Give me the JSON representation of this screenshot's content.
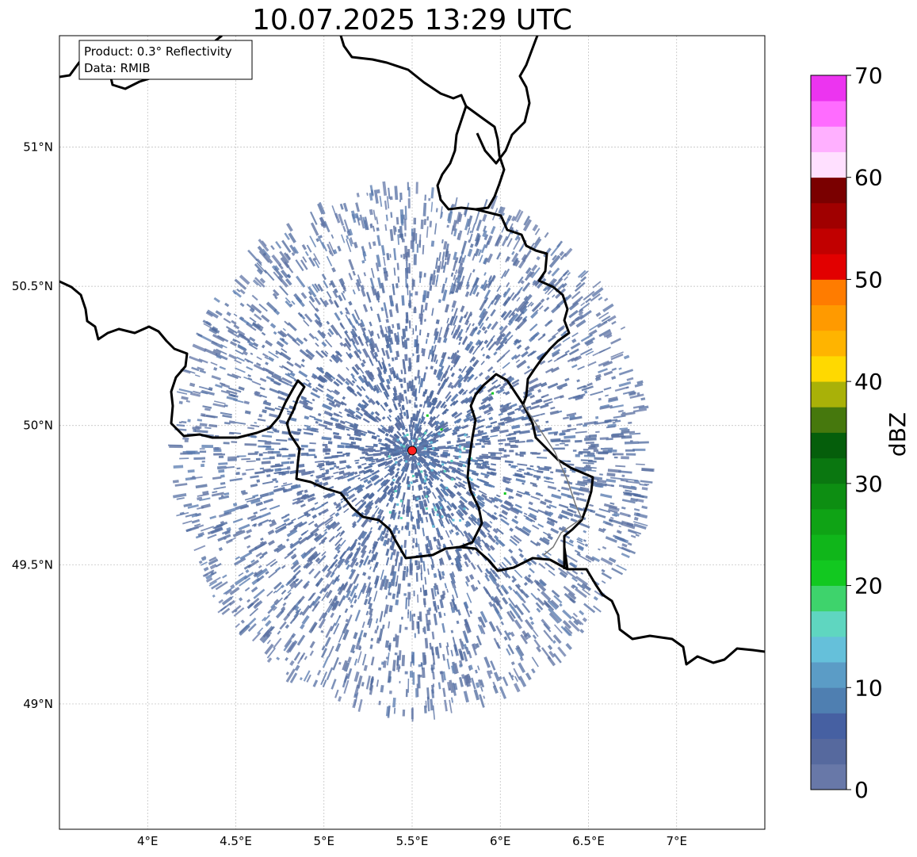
{
  "title": "10.07.2025 13:29 UTC",
  "info": {
    "product": "Product: 0.3° Reflectivity",
    "data_source": "Data: RMIB"
  },
  "map": {
    "lon_range": [
      3.5,
      7.5
    ],
    "lat_range": [
      48.55,
      51.4
    ],
    "lon_ticks": [
      {
        "value": 4.0,
        "label": "4°E"
      },
      {
        "value": 4.5,
        "label": "4.5°E"
      },
      {
        "value": 5.0,
        "label": "5°E"
      },
      {
        "value": 5.5,
        "label": "5.5°E"
      },
      {
        "value": 6.0,
        "label": "6°E"
      },
      {
        "value": 6.5,
        "label": "6.5°E"
      },
      {
        "value": 7.0,
        "label": "7°E"
      }
    ],
    "lat_ticks": [
      {
        "value": 51.0,
        "label": "51°N"
      },
      {
        "value": 50.5,
        "label": "50.5°N"
      },
      {
        "value": 50.0,
        "label": "50°N"
      },
      {
        "value": 49.5,
        "label": "49.5°N"
      },
      {
        "value": 49.0,
        "label": "49°N"
      }
    ],
    "gridlines": true,
    "radar_site": {
      "lon": 5.5,
      "lat": 49.91,
      "marker_color": "#ff2020"
    },
    "echo_extent_deg": {
      "lon_radius": 1.35,
      "lat_radius": 0.95
    },
    "echo_dominant_color": "#5b70a0"
  },
  "colorbar": {
    "label": "dBZ",
    "min": 0,
    "max": 70,
    "ticks": [
      {
        "value": 0,
        "label": "0"
      },
      {
        "value": 10,
        "label": "10"
      },
      {
        "value": 20,
        "label": "20"
      },
      {
        "value": 30,
        "label": "30"
      },
      {
        "value": 40,
        "label": "40"
      },
      {
        "value": 50,
        "label": "50"
      },
      {
        "value": 60,
        "label": "60"
      },
      {
        "value": 70,
        "label": "70"
      }
    ],
    "colors": [
      "#6878a8",
      "#56699e",
      "#4660a2",
      "#4f7fb1",
      "#5b9cc6",
      "#65c0da",
      "#5fd6c0",
      "#3ed36c",
      "#12c820",
      "#10b61a",
      "#0fa315",
      "#0d8e12",
      "#0a7710",
      "#055e0b",
      "#46780d",
      "#a9b108",
      "#ffd900",
      "#ffb400",
      "#ff9a00",
      "#ff7c00",
      "#e20000",
      "#c10000",
      "#a00000",
      "#7a0000",
      "#ffe0ff",
      "#ffb0ff",
      "#ff6cff",
      "#ec34f0"
    ]
  },
  "chart_data": {
    "type": "map",
    "title": "10.07.2025 13:29 UTC",
    "colorbar_label": "dBZ",
    "colorbar_range": [
      0,
      70
    ]
  }
}
